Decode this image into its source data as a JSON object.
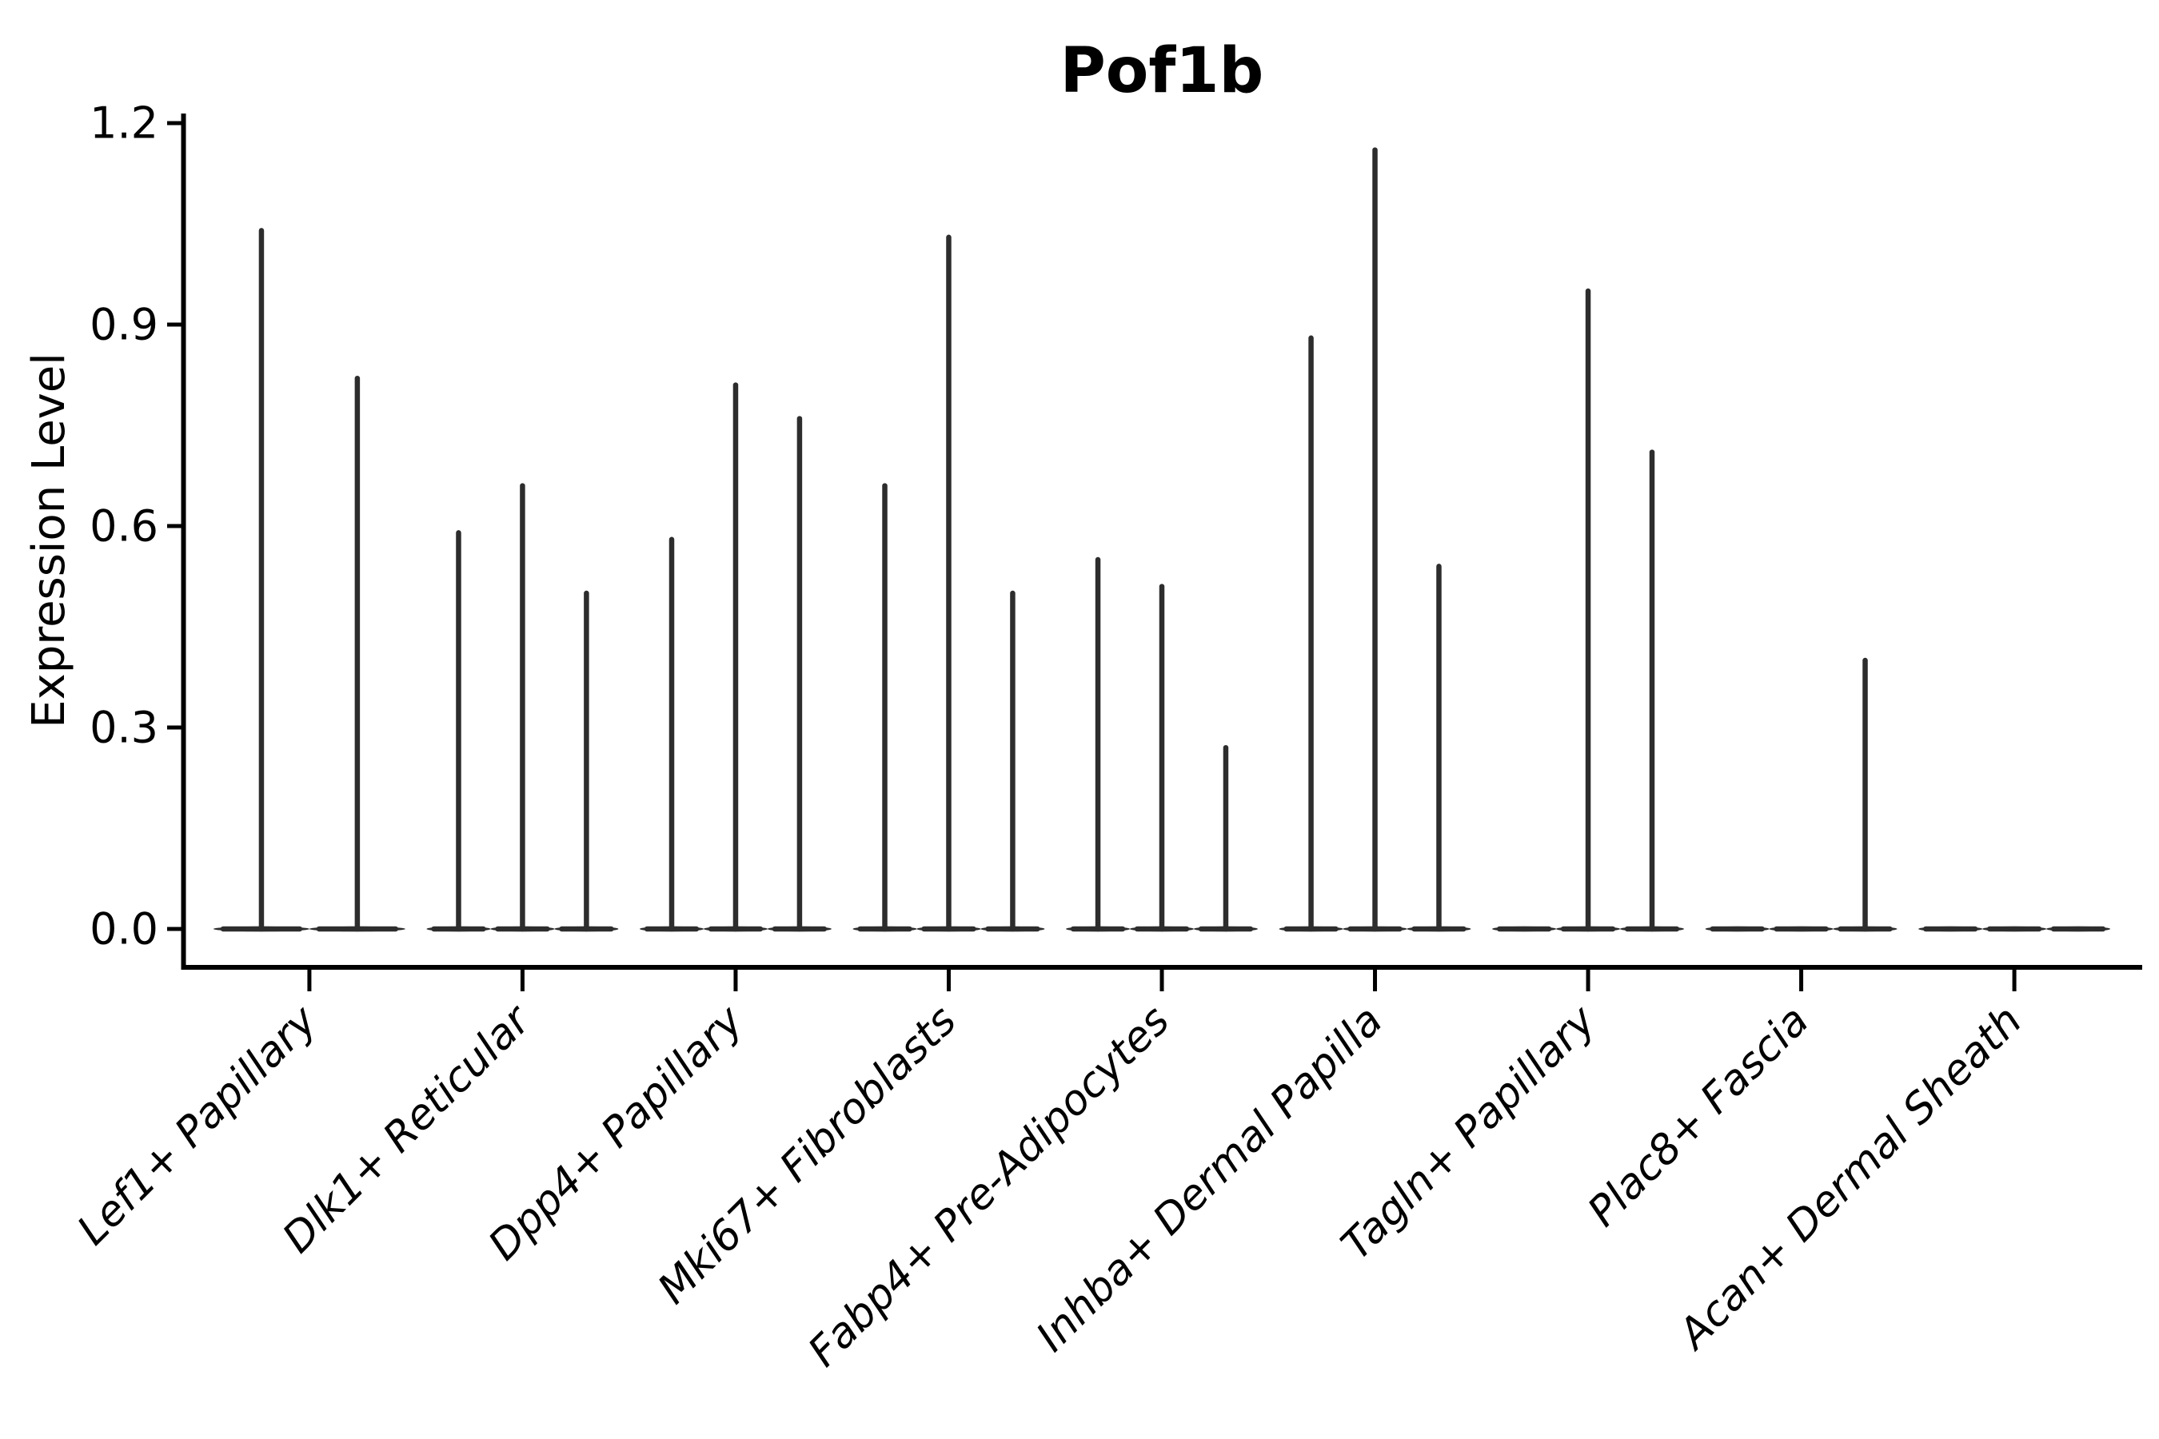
{
  "chart_data": {
    "type": "violin",
    "title": "Pof1b",
    "ylabel": "Expression Level",
    "xlabel": "",
    "grid": false,
    "legend_position": "none",
    "ylim": [
      -0.06,
      1.21
    ],
    "yticks": [
      {
        "label": "0.0",
        "value": 0.0
      },
      {
        "label": "0.3",
        "value": 0.3
      },
      {
        "label": "0.6",
        "value": 0.6
      },
      {
        "label": "0.9",
        "value": 0.9
      },
      {
        "label": "1.2",
        "value": 1.2
      }
    ],
    "categories": [
      "Lef1+ Papillary",
      "Dlk1+ Reticular",
      "Dpp4+ Papillary",
      "Mki67+ Fibroblasts",
      "Fabp4+ Pre-Adipocytes",
      "Inhba+ Dermal Papilla",
      "Tagln+ Papillary",
      "Plac8+ Fascia",
      "Acan+ Dermal Sheath"
    ],
    "groups": [
      {
        "category": "Lef1+ Papillary",
        "violin_maxima": [
          1.04,
          0.82
        ]
      },
      {
        "category": "Dlk1+ Reticular",
        "violin_maxima": [
          0.59,
          0.66,
          0.5
        ]
      },
      {
        "category": "Dpp4+ Papillary",
        "violin_maxima": [
          0.58,
          0.81,
          0.76
        ]
      },
      {
        "category": "Mki67+ Fibroblasts",
        "violin_maxima": [
          0.66,
          1.03,
          0.5
        ]
      },
      {
        "category": "Fabp4+ Pre-Adipocytes",
        "violin_maxima": [
          0.55,
          0.51,
          0.27
        ]
      },
      {
        "category": "Inhba+ Dermal Papilla",
        "violin_maxima": [
          0.88,
          1.16,
          0.54
        ]
      },
      {
        "category": "Tagln+ Papillary",
        "violin_maxima": [
          0.0,
          0.95,
          0.71
        ]
      },
      {
        "category": "Plac8+ Fascia",
        "violin_maxima": [
          0.0,
          0.0,
          0.4
        ]
      },
      {
        "category": "Acan+ Dermal Sheath",
        "violin_maxima": [
          0.0,
          0.0,
          0.0
        ]
      }
    ],
    "colors": {
      "violin": "#2d2d2d",
      "axis": "#000000",
      "background": "#ffffff"
    }
  }
}
